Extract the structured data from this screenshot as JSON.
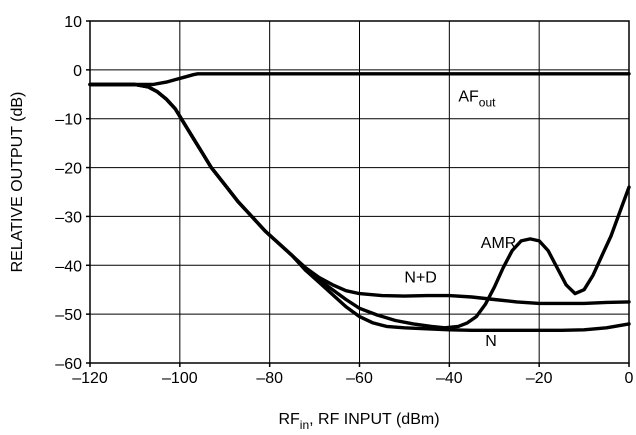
{
  "chart_data": {
    "type": "line",
    "title": "",
    "xlabel": {
      "main": "RF",
      "sub": "in",
      "rest": ", RF INPUT (dBm)"
    },
    "ylabel": "RELATIVE OUTPUT (dB)",
    "xlim": [
      -120,
      0
    ],
    "ylim": [
      -60,
      10
    ],
    "x_ticks": [
      {
        "value": -120,
        "label": "–120"
      },
      {
        "value": -100,
        "label": "–100"
      },
      {
        "value": -80,
        "label": "–80"
      },
      {
        "value": -60,
        "label": "–60"
      },
      {
        "value": -40,
        "label": "–40"
      },
      {
        "value": -20,
        "label": "–20"
      },
      {
        "value": 0,
        "label": "0"
      }
    ],
    "y_ticks": [
      {
        "value": 10,
        "label": "10"
      },
      {
        "value": 0,
        "label": "0"
      },
      {
        "value": -10,
        "label": "–10"
      },
      {
        "value": -20,
        "label": "–20"
      },
      {
        "value": -30,
        "label": "–30"
      },
      {
        "value": -40,
        "label": "–40"
      },
      {
        "value": -50,
        "label": "–50"
      },
      {
        "value": -60,
        "label": "–60"
      }
    ],
    "grid": true,
    "series": [
      {
        "name": "AF",
        "name_sub": "out",
        "points": [
          [
            -120,
            -3
          ],
          [
            -110,
            -3
          ],
          [
            -106,
            -3
          ],
          [
            -103,
            -2.5
          ],
          [
            -101,
            -2
          ],
          [
            -99,
            -1.5
          ],
          [
            -97,
            -1
          ],
          [
            -96,
            -0.8
          ],
          [
            -90,
            -0.8
          ],
          [
            -80,
            -0.8
          ],
          [
            -60,
            -0.8
          ],
          [
            -40,
            -0.8
          ],
          [
            -20,
            -0.8
          ],
          [
            0,
            -0.8
          ]
        ]
      },
      {
        "name": "N+D",
        "points": [
          [
            -120,
            -3
          ],
          [
            -110,
            -3
          ],
          [
            -107,
            -3.5
          ],
          [
            -105,
            -4.5
          ],
          [
            -103,
            -6
          ],
          [
            -101,
            -8
          ],
          [
            -99,
            -11
          ],
          [
            -97,
            -14
          ],
          [
            -95,
            -17
          ],
          [
            -93,
            -20
          ],
          [
            -90,
            -23.5
          ],
          [
            -87,
            -27
          ],
          [
            -84,
            -30
          ],
          [
            -81,
            -33
          ],
          [
            -78,
            -35.5
          ],
          [
            -75,
            -38
          ],
          [
            -72,
            -40.5
          ],
          [
            -69,
            -42.5
          ],
          [
            -66,
            -44
          ],
          [
            -63,
            -45.2
          ],
          [
            -60,
            -45.8
          ],
          [
            -55,
            -46.2
          ],
          [
            -50,
            -46.3
          ],
          [
            -45,
            -46.2
          ],
          [
            -40,
            -46.2
          ],
          [
            -35,
            -46.5
          ],
          [
            -30,
            -47
          ],
          [
            -25,
            -47.5
          ],
          [
            -20,
            -47.8
          ],
          [
            -15,
            -47.8
          ],
          [
            -10,
            -47.8
          ],
          [
            -5,
            -47.6
          ],
          [
            0,
            -47.5
          ]
        ]
      },
      {
        "name": "N",
        "points": [
          [
            -120,
            -3
          ],
          [
            -110,
            -3
          ],
          [
            -107,
            -3.5
          ],
          [
            -105,
            -4.5
          ],
          [
            -103,
            -6
          ],
          [
            -101,
            -8
          ],
          [
            -99,
            -11
          ],
          [
            -97,
            -14
          ],
          [
            -95,
            -17
          ],
          [
            -93,
            -20
          ],
          [
            -90,
            -23.5
          ],
          [
            -87,
            -27
          ],
          [
            -84,
            -30
          ],
          [
            -81,
            -33
          ],
          [
            -78,
            -35.5
          ],
          [
            -75,
            -38
          ],
          [
            -72,
            -41
          ],
          [
            -69,
            -43.5
          ],
          [
            -66,
            -46
          ],
          [
            -63,
            -48.5
          ],
          [
            -60,
            -50.5
          ],
          [
            -57,
            -51.8
          ],
          [
            -54,
            -52.5
          ],
          [
            -50,
            -52.8
          ],
          [
            -45,
            -53
          ],
          [
            -40,
            -53.2
          ],
          [
            -35,
            -53.3
          ],
          [
            -30,
            -53.3
          ],
          [
            -25,
            -53.3
          ],
          [
            -20,
            -53.3
          ],
          [
            -15,
            -53.3
          ],
          [
            -10,
            -53.2
          ],
          [
            -5,
            -52.8
          ],
          [
            0,
            -52
          ]
        ]
      },
      {
        "name": "AMR",
        "points": [
          [
            -120,
            -3
          ],
          [
            -110,
            -3
          ],
          [
            -107,
            -3.5
          ],
          [
            -105,
            -4.5
          ],
          [
            -103,
            -6
          ],
          [
            -101,
            -8
          ],
          [
            -99,
            -11
          ],
          [
            -97,
            -14
          ],
          [
            -95,
            -17
          ],
          [
            -93,
            -20
          ],
          [
            -90,
            -23.5
          ],
          [
            -87,
            -27
          ],
          [
            -84,
            -30
          ],
          [
            -81,
            -33
          ],
          [
            -78,
            -35.5
          ],
          [
            -75,
            -38
          ],
          [
            -72,
            -41
          ],
          [
            -69,
            -43
          ],
          [
            -66,
            -45
          ],
          [
            -63,
            -47
          ],
          [
            -60,
            -48.8
          ],
          [
            -56,
            -50.2
          ],
          [
            -52,
            -51.3
          ],
          [
            -48,
            -52
          ],
          [
            -44,
            -52.5
          ],
          [
            -41,
            -52.8
          ],
          [
            -38,
            -52.5
          ],
          [
            -36,
            -51.8
          ],
          [
            -34,
            -50.5
          ],
          [
            -32,
            -48
          ],
          [
            -30,
            -44.5
          ],
          [
            -28,
            -40.5
          ],
          [
            -26,
            -37
          ],
          [
            -24,
            -35
          ],
          [
            -22,
            -34.6
          ],
          [
            -20,
            -35
          ],
          [
            -18,
            -37
          ],
          [
            -16,
            -40.5
          ],
          [
            -14,
            -44
          ],
          [
            -12,
            -45.8
          ],
          [
            -10,
            -45
          ],
          [
            -8,
            -42
          ],
          [
            -6,
            -38
          ],
          [
            -4,
            -34
          ],
          [
            -2,
            -29
          ],
          [
            0,
            -24
          ]
        ]
      }
    ],
    "annotations": [
      {
        "series": "AF",
        "text": "AF",
        "sub": "out",
        "x": -38,
        "y": -6.5
      },
      {
        "series": "N+D",
        "text": "N+D",
        "x": -50,
        "y": -43.5
      },
      {
        "series": "AMR",
        "text": "AMR",
        "x": -33,
        "y": -36.5
      },
      {
        "series": "N",
        "text": "N",
        "x": -32,
        "y": -56.5
      }
    ]
  }
}
